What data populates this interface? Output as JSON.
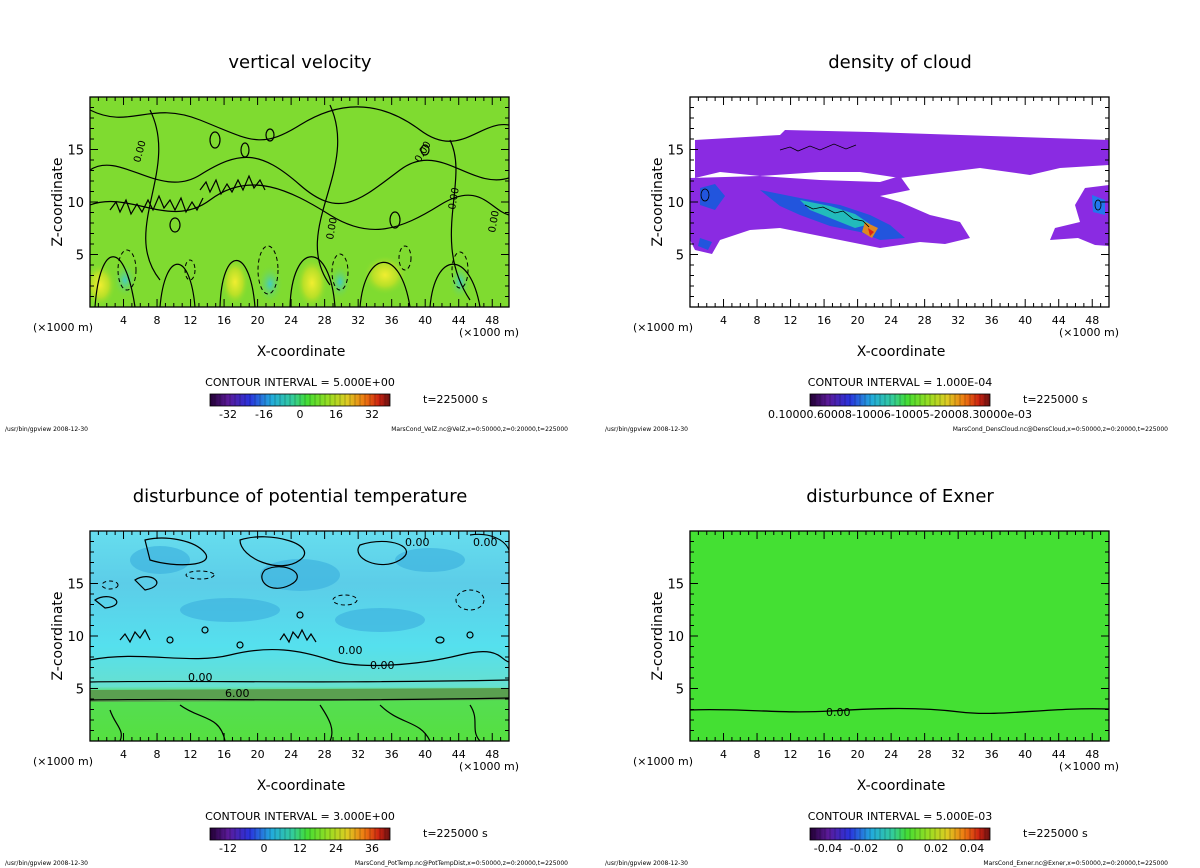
{
  "chart_data": [
    {
      "type": "heatmap",
      "title": "vertical velocity",
      "xlabel": "X-coordinate",
      "ylabel": "Z-coordinate",
      "x_unit_left": "(×1000 m)",
      "x_unit_right": "(×1000 m)",
      "x_ticks": [
        "4",
        "8",
        "12",
        "16",
        "20",
        "24",
        "28",
        "32",
        "36",
        "40",
        "44",
        "48"
      ],
      "y_ticks": [
        "5",
        "10",
        "15"
      ],
      "xlim": [
        0,
        50
      ],
      "ylim": [
        0,
        20
      ],
      "contour_interval": "CONTOUR INTERVAL = 5.000E+00",
      "time": "t=225000 s",
      "colorbar_ticks": [
        "-32",
        "-16",
        "0",
        "16",
        "32"
      ],
      "colorbar_range": [
        -40,
        40
      ],
      "contour_labels": [
        "0.00",
        "0.00",
        "0.00",
        "0.00",
        "0.00"
      ],
      "footer_left": "/usr/bin/gpview  2008-12-30",
      "footer_right": "MarsCond_VelZ.nc@VelZ,x=0:50000,z=0:20000,t=225000"
    },
    {
      "type": "heatmap",
      "title": "density of cloud",
      "xlabel": "X-coordinate",
      "ylabel": "Z-coordinate",
      "x_unit_left": "(×1000 m)",
      "x_unit_right": "(×1000 m)",
      "x_ticks": [
        "4",
        "8",
        "12",
        "16",
        "20",
        "24",
        "28",
        "32",
        "36",
        "40",
        "44",
        "48"
      ],
      "y_ticks": [
        "5",
        "10",
        "15"
      ],
      "xlim": [
        0,
        50
      ],
      "ylim": [
        0,
        20
      ],
      "contour_interval": "CONTOUR INTERVAL = 1.000E-04",
      "time": "t=225000 s",
      "colorbar_ticks_text": "0.10000.60008-10006-10005-20008.30000e-03",
      "footer_left": "/usr/bin/gpview  2008-12-30",
      "footer_right": "MarsCond_DensCloud.nc@DensCloud,x=0:50000,z=0:20000,t=225000"
    },
    {
      "type": "heatmap",
      "title": "disturbunce of potential temperature",
      "xlabel": "X-coordinate",
      "ylabel": "Z-coordinate",
      "x_unit_left": "(×1000 m)",
      "x_unit_right": "(×1000 m)",
      "x_ticks": [
        "4",
        "8",
        "12",
        "16",
        "20",
        "24",
        "28",
        "32",
        "36",
        "40",
        "44",
        "48"
      ],
      "y_ticks": [
        "5",
        "10",
        "15"
      ],
      "xlim": [
        0,
        50
      ],
      "ylim": [
        0,
        20
      ],
      "contour_interval": "CONTOUR INTERVAL = 3.000E+00",
      "time": "t=225000 s",
      "colorbar_ticks": [
        "-12",
        "0",
        "12",
        "24",
        "36"
      ],
      "colorbar_range": [
        -18,
        42
      ],
      "contour_labels": [
        "6.00",
        "0.00",
        "0.00",
        "0.00",
        "0.00",
        "0.00"
      ],
      "footer_left": "/usr/bin/gpview  2008-12-30",
      "footer_right": "MarsCond_PotTemp.nc@PotTempDist,x=0:50000,z=0:20000,t=225000"
    },
    {
      "type": "heatmap",
      "title": "disturbunce of Exner",
      "xlabel": "X-coordinate",
      "ylabel": "Z-coordinate",
      "x_unit_left": "(×1000 m)",
      "x_unit_right": "(×1000 m)",
      "x_ticks": [
        "4",
        "8",
        "12",
        "16",
        "20",
        "24",
        "28",
        "32",
        "36",
        "40",
        "44",
        "48"
      ],
      "y_ticks": [
        "5",
        "10",
        "15"
      ],
      "xlim": [
        0,
        50
      ],
      "ylim": [
        0,
        20
      ],
      "contour_interval": "CONTOUR INTERVAL = 5.000E-03",
      "time": "t=225000 s",
      "colorbar_ticks": [
        "-0.04",
        "-0.02",
        "0",
        "0.02",
        "0.04"
      ],
      "colorbar_range": [
        -0.05,
        0.05
      ],
      "contour_labels": [
        "0.00"
      ],
      "footer_left": "/usr/bin/gpview  2008-12-30",
      "footer_right": "MarsCond_Exner.nc@Exner,x=0:50000,z=0:20000,t=225000"
    }
  ]
}
